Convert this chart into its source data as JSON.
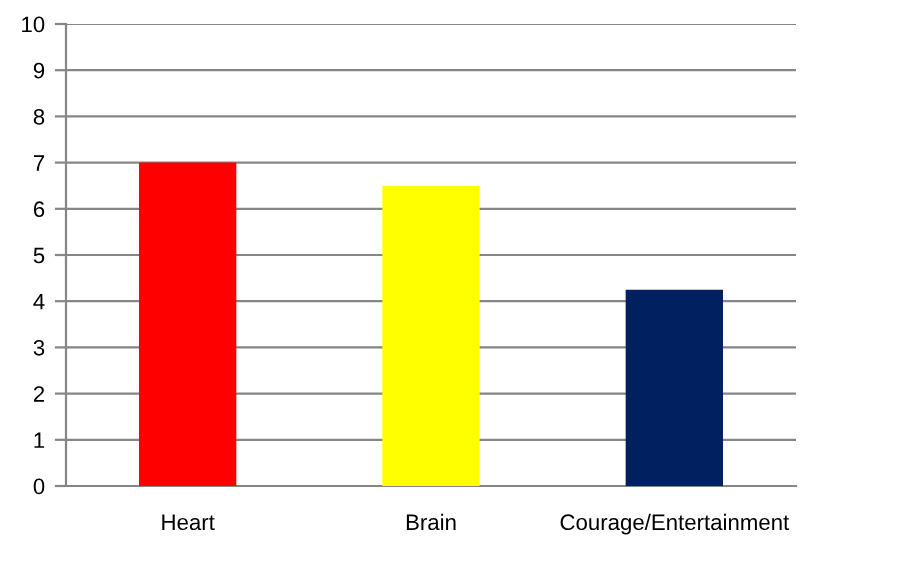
{
  "chart_data": {
    "type": "bar",
    "categories": [
      "Heart",
      "Brain",
      "Courage/Entertainment"
    ],
    "values": [
      7,
      6.5,
      4.25
    ],
    "colors": [
      "#ff0000",
      "#ffff00",
      "#002060"
    ],
    "ylim": [
      0,
      10
    ],
    "yticks": [
      0,
      1,
      2,
      3,
      4,
      5,
      6,
      7,
      8,
      9,
      10
    ],
    "grid": "y",
    "legend": false
  }
}
